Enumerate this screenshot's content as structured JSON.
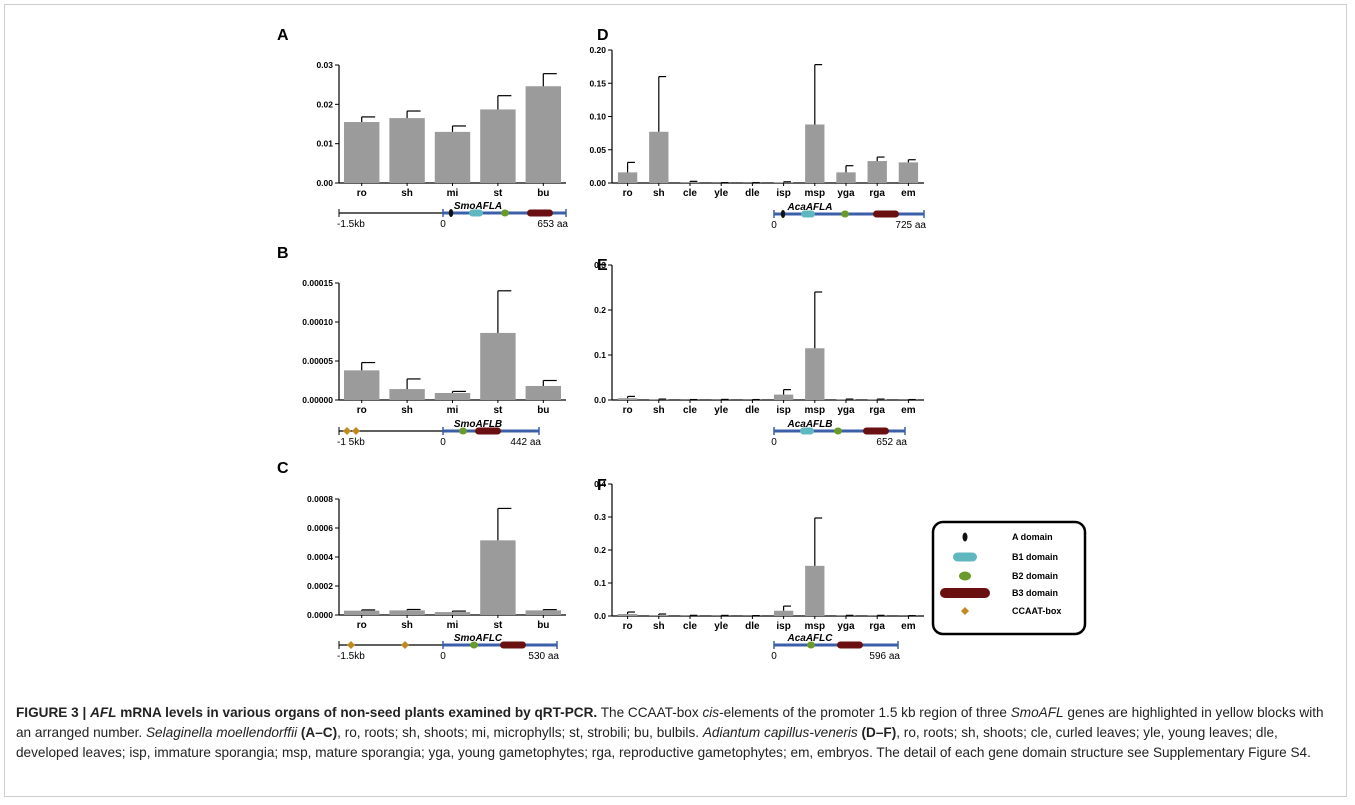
{
  "figure": {
    "caption": {
      "label": "FIGURE 3 | ",
      "gene_italic": "AFL",
      "title_rest": " mRNA levels in various organs of non-seed plants examined by qRT-PCR.",
      "t1": " The CCAAT-box ",
      "cis": "cis",
      "t2": "-elements of the promoter 1.5 kb region of three ",
      "smo": "SmoAFL",
      "t3": " genes are highlighted in yellow blocks with an arranged number. ",
      "selag": "Selaginella moellendorffii",
      "ac": "(A–C)",
      "t4": ", ro, roots; sh, shoots; mi, microphylls; st, strobili; bu, bulbils. ",
      "adian": "Adiantum capillus-veneris",
      "df": "(D–F)",
      "t5": ", ro, roots; sh, shoots; cle, curled leaves; yle, young leaves; dle, developed leaves; isp, immature sporangia; msp, mature sporangia; yga, young gametophytes; rga, reproductive gametophytes; em, embryos. The detail of each gene domain structure see Supplementary Figure S4."
    },
    "legend": [
      {
        "label": "A domain",
        "shape": "a",
        "color": "#111111"
      },
      {
        "label": "B1 domain",
        "shape": "b1",
        "color": "#5fb8c0"
      },
      {
        "label": "B2 domain",
        "shape": "b2",
        "color": "#6a9a2a"
      },
      {
        "label": "B3 domain",
        "shape": "b3",
        "color": "#6b1010"
      },
      {
        "label": "CCAAT-box",
        "shape": "ccaat",
        "color": "#c08a1e"
      }
    ],
    "colors": {
      "bar": "#9b9b9b",
      "axis": "#000000",
      "gene_line": "#3b5fa8",
      "promoter_line": "#000000"
    }
  },
  "chart_data": [
    {
      "panel": "A",
      "type": "bar",
      "categories": [
        "ro",
        "sh",
        "mi",
        "st",
        "bu"
      ],
      "values": [
        0.0155,
        0.0165,
        0.013,
        0.0187,
        0.0246
      ],
      "errors": [
        0.0013,
        0.0018,
        0.0015,
        0.0035,
        0.0032
      ],
      "ylim": [
        0,
        0.03
      ],
      "yticks": [
        "0.00",
        "0.01",
        "0.02",
        "0.03"
      ],
      "ytick_values": [
        0,
        0.01,
        0.02,
        0.03
      ],
      "gene": {
        "name": "SmoAFLA",
        "left_label": "-1.5kb",
        "zero_label": "0",
        "end_label": "653 aa"
      }
    },
    {
      "panel": "B",
      "type": "bar",
      "categories": [
        "ro",
        "sh",
        "mi",
        "st",
        "bu"
      ],
      "values": [
        3.8e-05,
        1.4e-05,
        9e-06,
        8.6e-05,
        1.8e-05
      ],
      "errors": [
        1e-05,
        1.3e-05,
        2e-06,
        5.4e-05,
        7e-06
      ],
      "ylim": [
        0,
        0.00015
      ],
      "yticks": [
        "0.00000",
        "0.00005",
        "0.00010",
        "0.00015"
      ],
      "ytick_values": [
        0,
        5e-05,
        0.0001,
        0.00015
      ],
      "gene": {
        "name": "SmoAFLB",
        "left_label": "-1 5kb",
        "zero_label": "0",
        "end_label": "442 aa"
      }
    },
    {
      "panel": "C",
      "type": "bar",
      "categories": [
        "ro",
        "sh",
        "mi",
        "st",
        "bu"
      ],
      "values": [
        3e-05,
        3.2e-05,
        2e-05,
        0.000515,
        3.2e-05
      ],
      "errors": [
        5e-06,
        6e-06,
        7e-06,
        0.00022,
        5e-06
      ],
      "ylim": [
        0,
        0.0008
      ],
      "yticks": [
        "0.0000",
        "0.0002",
        "0.0004",
        "0.0006",
        "0.0008"
      ],
      "ytick_values": [
        0,
        0.0002,
        0.0004,
        0.0006,
        0.0008
      ],
      "gene": {
        "name": "SmoAFLC",
        "left_label": "-1.5kb",
        "zero_label": "0",
        "end_label": "530 aa"
      }
    },
    {
      "panel": "D",
      "type": "bar",
      "categories": [
        "ro",
        "sh",
        "cle",
        "yle",
        "dle",
        "isp",
        "msp",
        "yga",
        "rga",
        "em"
      ],
      "values": [
        0.016,
        0.077,
        0.0015,
        0.0003,
        0.0003,
        0.0008,
        0.088,
        0.016,
        0.033,
        0.031
      ],
      "errors": [
        0.015,
        0.083,
        0.001,
        0.0002,
        0.0002,
        0.001,
        0.09,
        0.01,
        0.006,
        0.004
      ],
      "ylim": [
        0,
        0.2
      ],
      "yticks": [
        "0.00",
        "0.05",
        "0.10",
        "0.15",
        "0.20"
      ],
      "ytick_values": [
        0,
        0.05,
        0.1,
        0.15,
        0.2
      ],
      "gene": {
        "name": "AcaAFLA",
        "zero_label": "0",
        "end_label": "725 aa"
      }
    },
    {
      "panel": "E",
      "type": "bar",
      "categories": [
        "ro",
        "sh",
        "cle",
        "yle",
        "dle",
        "isp",
        "msp",
        "yga",
        "rga",
        "em"
      ],
      "values": [
        0.004,
        0.001,
        0.0005,
        0.0005,
        0.0005,
        0.012,
        0.115,
        0.001,
        0.001,
        0.0005
      ],
      "errors": [
        0.004,
        0.001,
        0.0005,
        0.0008,
        0.0005,
        0.011,
        0.125,
        0.001,
        0.001,
        0.0005
      ],
      "ylim": [
        0,
        0.3
      ],
      "yticks": [
        "0.0",
        "0.1",
        "0.2",
        "0.3"
      ],
      "ytick_values": [
        0,
        0.1,
        0.2,
        0.3
      ],
      "gene": {
        "name": "AcaAFLB",
        "zero_label": "0",
        "end_label": "652 aa"
      }
    },
    {
      "panel": "F",
      "type": "bar",
      "categories": [
        "ro",
        "sh",
        "cle",
        "yle",
        "dle",
        "isp",
        "msp",
        "yga",
        "rga",
        "em"
      ],
      "values": [
        0.006,
        0.003,
        0.001,
        0.0008,
        0.0006,
        0.016,
        0.152,
        0.001,
        0.001,
        0.0005
      ],
      "errors": [
        0.006,
        0.003,
        0.001,
        0.001,
        0.0006,
        0.014,
        0.145,
        0.001,
        0.001,
        0.0005
      ],
      "ylim": [
        0,
        0.4
      ],
      "yticks": [
        "0.0",
        "0.1",
        "0.2",
        "0.3",
        "0.4"
      ],
      "ytick_values": [
        0,
        0.1,
        0.2,
        0.3,
        0.4
      ],
      "gene": {
        "name": "AcaAFLC",
        "zero_label": "0",
        "end_label": "596 aa"
      }
    }
  ]
}
